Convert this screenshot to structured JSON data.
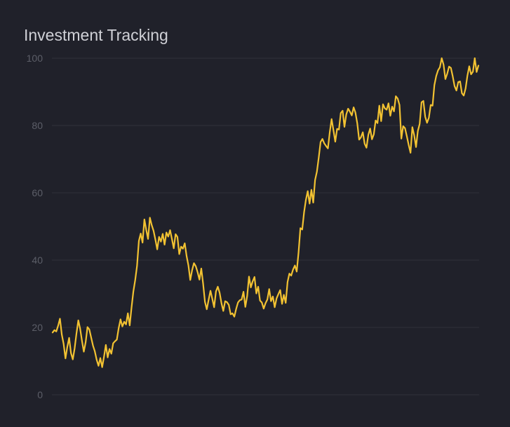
{
  "chart_data": {
    "type": "line",
    "title": "Investment Tracking",
    "xlabel": "",
    "ylabel": "",
    "ylim": [
      0,
      100
    ],
    "yticks": [
      0,
      20,
      40,
      60,
      80,
      100
    ],
    "grid": true,
    "legend": "none",
    "line_color": "#f2c232",
    "background": "#20212a",
    "series": [
      {
        "values": [
          18.5,
          19.2,
          18.8,
          20.5,
          22.6,
          17.9,
          15.1,
          10.8,
          14.2,
          16.9,
          12.4,
          10.5,
          13.8,
          18.2,
          22.1,
          19.6,
          16.0,
          12.8,
          15.6,
          20.1,
          19.4,
          17.0,
          14.6,
          12.9,
          10.4,
          8.6,
          10.9,
          8.2,
          11.3,
          14.8,
          11.1,
          13.6,
          12.2,
          15.3,
          15.9,
          16.4,
          19.8,
          22.4,
          20.3,
          21.7,
          20.9,
          24.2,
          20.6,
          25.9,
          30.7,
          34.1,
          38.3,
          45.7,
          47.9,
          45.2,
          52.1,
          49.0,
          46.3,
          52.6,
          50.4,
          48.7,
          46.1,
          43.2,
          46.9,
          45.5,
          47.8,
          44.6,
          48.2,
          47.0,
          48.9,
          46.3,
          43.5,
          47.7,
          46.9,
          41.8,
          44.0,
          43.4,
          45.0,
          41.2,
          38.4,
          34.1,
          37.0,
          39.1,
          38.2,
          36.4,
          34.2,
          37.5,
          33.0,
          27.6,
          25.4,
          28.2,
          30.9,
          28.5,
          26.0,
          30.7,
          32.1,
          30.3,
          27.2,
          24.9,
          27.8,
          27.5,
          26.7,
          23.9,
          24.2,
          23.2,
          25.5,
          27.4,
          28.1,
          28.3,
          30.6,
          26.1,
          29.3,
          35.1,
          31.9,
          33.7,
          35.0,
          30.1,
          32.1,
          28.0,
          27.4,
          25.6,
          27.2,
          28.3,
          31.4,
          27.8,
          29.2,
          26.0,
          28.6,
          29.9,
          31.1,
          27.0,
          29.7,
          27.3,
          33.5,
          36.0,
          35.4,
          37.2,
          38.4,
          36.6,
          42.3,
          49.5,
          49.1,
          54.2,
          57.9,
          60.5,
          56.8,
          60.9,
          57.1,
          63.8,
          66.3,
          70.5,
          75.1,
          76.0,
          74.7,
          73.9,
          73.2,
          78.0,
          81.9,
          78.6,
          75.2,
          79.0,
          78.8,
          83.7,
          84.4,
          79.6,
          83.3,
          85.0,
          84.1,
          83.0,
          85.4,
          83.8,
          80.6,
          75.8,
          76.5,
          78.0,
          74.6,
          73.4,
          77.2,
          79.1,
          75.9,
          77.4,
          81.5,
          80.7,
          85.9,
          81.3,
          86.3,
          85.1,
          84.7,
          86.6,
          82.9,
          85.6,
          84.2,
          88.7,
          88.0,
          86.1,
          76.1,
          79.8,
          79.2,
          76.8,
          74.2,
          71.9,
          79.5,
          77.1,
          73.6,
          78.4,
          80.5,
          86.9,
          87.3,
          82.6,
          80.8,
          82.3,
          86.1,
          85.9,
          92.0,
          94.7,
          96.4,
          97.3,
          100.0,
          98.1,
          93.8,
          95.4,
          97.5,
          97.1,
          94.6,
          91.7,
          90.4,
          92.9,
          93.1,
          89.6,
          88.9,
          91.0,
          94.8,
          97.6,
          95.2,
          96.0,
          100.0,
          95.9,
          97.8
        ]
      }
    ]
  }
}
